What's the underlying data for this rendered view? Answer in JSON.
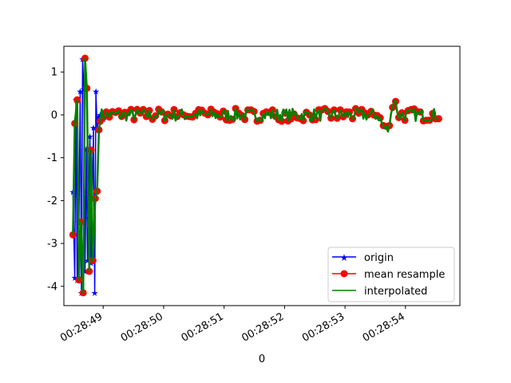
{
  "chart_data": {
    "type": "line",
    "title": "",
    "xlabel": "0",
    "ylabel": "",
    "x_unit": "time (HH:MM:SS)",
    "xlim": [
      "00:28:48.35",
      "00:28:54.9"
    ],
    "ylim": [
      -4.45,
      1.6
    ],
    "x_ticks": [
      "00:28:49",
      "00:28:50",
      "00:28:51",
      "00:28:52",
      "00:28:53",
      "00:28:54"
    ],
    "y_ticks": [
      1,
      0,
      -1,
      -2,
      -3,
      -4
    ],
    "legend_position": "lower-right",
    "grid": false,
    "series": [
      {
        "name": "origin",
        "color": "#0000ff",
        "marker": "star",
        "line": true,
        "x": [
          "00:28:48.50",
          "00:28:48.53",
          "00:28:48.55",
          "00:28:48.57",
          "00:28:48.60",
          "00:28:48.62",
          "00:28:48.64",
          "00:28:48.66",
          "00:28:48.68",
          "00:28:48.70",
          "00:28:48.72",
          "00:28:48.74",
          "00:28:48.76",
          "00:28:48.78",
          "00:28:48.80",
          "00:28:48.82",
          "00:28:48.84",
          "00:28:48.86",
          "00:28:48.88",
          "00:28:48.90",
          "00:28:48.92",
          "00:28:48.95",
          "00:28:49.00",
          "00:28:49.05",
          "00:28:49.10"
        ],
        "y": [
          -1.8,
          -3.8,
          0.35,
          -3.85,
          -2.5,
          0.55,
          -4.15,
          1.3,
          0.6,
          -3.65,
          -0.8,
          -3.4,
          -2.4,
          -0.5,
          -3.45,
          -1.95,
          -0.3,
          -4.15,
          0.55,
          -0.35,
          -0.05,
          0.0,
          -0.1,
          0.05,
          -0.05
        ]
      },
      {
        "name": "mean resample",
        "color": "#ff0000",
        "marker": "circle",
        "line": true,
        "x": [
          "00:28:48.50",
          "00:28:48.53",
          "00:28:48.57",
          "00:28:48.60",
          "00:28:48.63",
          "00:28:48.67",
          "00:28:48.70",
          "00:28:48.73",
          "00:28:48.77",
          "00:28:48.80",
          "00:28:48.83",
          "00:28:48.87",
          "00:28:48.90",
          "00:28:48.93"
        ],
        "y": [
          -2.8,
          -0.2,
          0.35,
          -3.85,
          -2.5,
          -4.15,
          1.32,
          0.62,
          -3.65,
          -0.82,
          -3.4,
          -1.95,
          -1.78,
          -0.35
        ]
      },
      {
        "name": "interpolated",
        "color": "#008000",
        "marker": "none",
        "line": true,
        "x": [
          "00:28:48.50",
          "00:28:48.53",
          "00:28:48.57",
          "00:28:48.60",
          "00:28:48.63",
          "00:28:48.67",
          "00:28:48.70",
          "00:28:48.73",
          "00:28:48.77",
          "00:28:48.80",
          "00:28:48.83",
          "00:28:48.87",
          "00:28:48.90",
          "00:28:48.93"
        ],
        "y": [
          -2.8,
          -0.2,
          0.35,
          -3.85,
          -2.5,
          -4.15,
          1.32,
          0.62,
          -3.65,
          -0.82,
          -3.4,
          -1.95,
          -1.78,
          -0.35
        ]
      }
    ],
    "tail_segment": {
      "x_start": "00:28:48.95",
      "x_end": "00:28:54.55",
      "y_range": [
        -0.6,
        0.45
      ]
    }
  }
}
